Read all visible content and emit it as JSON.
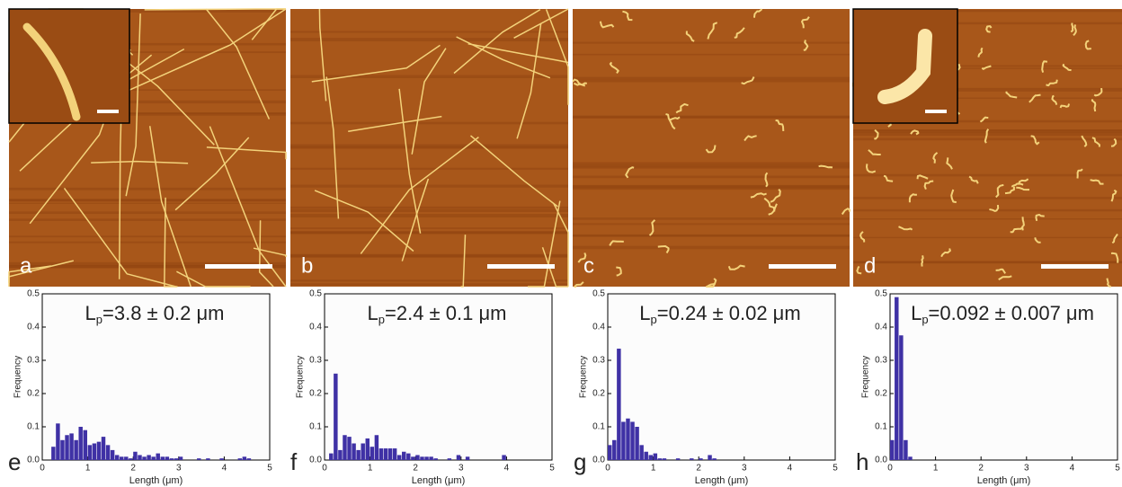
{
  "panels": [
    {
      "label": "a"
    },
    {
      "label": "b"
    },
    {
      "label": "c"
    },
    {
      "label": "d"
    }
  ],
  "chart_data": [
    {
      "type": "histogram",
      "panel_label": "e",
      "annotation": {
        "symbol": "L",
        "subscript": "p",
        "text": "=3.8 ± 0.2 μm"
      },
      "xlabel": "Length (μm)",
      "ylabel": "Frequency",
      "color": "#3f31a5",
      "bins": [
        0,
        0.1,
        0.2,
        0.3,
        0.4,
        0.5,
        0.6,
        0.7,
        0.8,
        0.9,
        1,
        1.1,
        1.2,
        1.3,
        1.4,
        1.5,
        1.6,
        1.7,
        1.8,
        1.9,
        2,
        2.1,
        2.2,
        2.3,
        2.4,
        2.5,
        2.6,
        2.7,
        2.8,
        2.9,
        3,
        3.1,
        3.2,
        3.3,
        3.4,
        3.5,
        3.6,
        3.7,
        3.8,
        3.9,
        4,
        4.1,
        4.2,
        4.3,
        4.4,
        4.5,
        4.6
      ],
      "values": [
        0,
        0,
        0.04,
        0.11,
        0.06,
        0.075,
        0.08,
        0.06,
        0.1,
        0.09,
        0.045,
        0.05,
        0.055,
        0.07,
        0.045,
        0.03,
        0.015,
        0.01,
        0.01,
        0.005,
        0.025,
        0.015,
        0.01,
        0.015,
        0.01,
        0.02,
        0.01,
        0.01,
        0.005,
        0.005,
        0.01,
        0,
        0,
        0,
        0.005,
        0,
        0.005,
        0,
        0,
        0.005,
        0,
        0,
        0,
        0.005,
        0.01,
        0.005
      ],
      "xlim": [
        0,
        5
      ],
      "xticks": [
        0,
        1,
        2,
        3,
        4,
        5
      ],
      "ylim": [
        0,
        0.5
      ],
      "yticks": [
        {
          "value": 0,
          "label": "0.0"
        },
        0.1,
        0.2,
        0.3,
        0.4,
        0.5
      ]
    },
    {
      "type": "histogram",
      "panel_label": "f",
      "annotation": {
        "symbol": "L",
        "subscript": "p",
        "text": "=2.4 ± 0.1 μm"
      },
      "xlabel": "Length (μm)",
      "ylabel": "Frequency",
      "color": "#3f31a5",
      "bins": [
        0,
        0.1,
        0.2,
        0.3,
        0.4,
        0.5,
        0.6,
        0.7,
        0.8,
        0.9,
        1,
        1.1,
        1.2,
        1.3,
        1.4,
        1.5,
        1.6,
        1.7,
        1.8,
        1.9,
        2,
        2.1,
        2.2,
        2.3,
        2.4,
        2.5,
        2.6,
        2.7,
        2.8,
        2.9,
        3,
        3.1,
        3.2,
        3.3,
        3.4,
        3.5,
        3.6,
        3.7,
        3.8,
        3.9,
        4,
        4.1,
        4.2,
        4.3,
        4.4,
        4.5,
        4.6
      ],
      "values": [
        0,
        0.02,
        0.26,
        0.03,
        0.075,
        0.07,
        0.05,
        0.03,
        0.05,
        0.065,
        0.04,
        0.075,
        0.035,
        0.035,
        0.035,
        0.035,
        0.015,
        0.025,
        0.02,
        0.01,
        0.015,
        0.01,
        0.01,
        0.01,
        0.005,
        0,
        0,
        0.005,
        0,
        0.015,
        0,
        0.01,
        0,
        0,
        0,
        0,
        0,
        0,
        0,
        0.015,
        0,
        0,
        0,
        0,
        0,
        0
      ],
      "xlim": [
        0,
        5
      ],
      "xticks": [
        0,
        1,
        2,
        3,
        4,
        5
      ],
      "ylim": [
        0,
        0.5
      ],
      "yticks": [
        {
          "value": 0,
          "label": "0.0"
        },
        0.1,
        0.2,
        0.3,
        0.4,
        0.5
      ]
    },
    {
      "type": "histogram",
      "panel_label": "g",
      "annotation": {
        "symbol": "L",
        "subscript": "p",
        "text": "=0.24 ± 0.02 μm"
      },
      "xlabel": "Length (μm)",
      "ylabel": "Frequency",
      "color": "#3f31a5",
      "bins": [
        0,
        0.1,
        0.2,
        0.3,
        0.4,
        0.5,
        0.6,
        0.7,
        0.8,
        0.9,
        1,
        1.1,
        1.2,
        1.3,
        1.4,
        1.5,
        1.6,
        1.7,
        1.8,
        1.9,
        2,
        2.1,
        2.2,
        2.3,
        2.4,
        2.5,
        2.6,
        2.7,
        2.8,
        2.9,
        3,
        3.1,
        3.2,
        3.3,
        3.4,
        3.5,
        3.6,
        3.7,
        3.8,
        3.9,
        4,
        4.1,
        4.2,
        4.3,
        4.4,
        4.5,
        4.6
      ],
      "values": [
        0.045,
        0.06,
        0.335,
        0.115,
        0.125,
        0.115,
        0.1,
        0.045,
        0.025,
        0.015,
        0.02,
        0.005,
        0.005,
        0,
        0,
        0.005,
        0,
        0,
        0.005,
        0,
        0.005,
        0,
        0.015,
        0.005,
        0,
        0,
        0,
        0,
        0,
        0,
        0,
        0,
        0,
        0,
        0,
        0,
        0,
        0,
        0,
        0,
        0,
        0,
        0,
        0,
        0,
        0
      ],
      "xlim": [
        0,
        5
      ],
      "xticks": [
        0,
        1,
        2,
        3,
        4,
        5
      ],
      "ylim": [
        0,
        0.5
      ],
      "yticks": [
        {
          "value": 0,
          "label": "0.0"
        },
        0.1,
        0.2,
        0.3,
        0.4,
        0.5
      ]
    },
    {
      "type": "histogram",
      "panel_label": "h",
      "annotation": {
        "symbol": "L",
        "subscript": "p",
        "text": "=0.092 ± 0.007 μm"
      },
      "xlabel": "Length (μm)",
      "ylabel": "Frequency",
      "color": "#3f31a5",
      "bins": [
        0,
        0.1,
        0.2,
        0.3,
        0.4,
        0.5,
        0.6,
        0.7,
        0.8,
        0.9,
        1,
        1.1,
        1.2,
        1.3,
        1.4,
        1.5,
        1.6,
        1.7,
        1.8,
        1.9,
        2,
        2.1,
        2.2,
        2.3,
        2.4,
        2.5,
        2.6,
        2.7,
        2.8,
        2.9,
        3,
        3.1,
        3.2,
        3.3,
        3.4,
        3.5,
        3.6,
        3.7,
        3.8,
        3.9,
        4,
        4.1,
        4.2,
        4.3,
        4.4,
        4.5,
        4.6
      ],
      "values": [
        0.06,
        0.49,
        0.375,
        0.06,
        0.01,
        0,
        0,
        0,
        0,
        0,
        0,
        0,
        0,
        0,
        0,
        0,
        0,
        0,
        0,
        0,
        0,
        0,
        0,
        0,
        0,
        0,
        0,
        0,
        0,
        0,
        0,
        0,
        0,
        0,
        0,
        0,
        0,
        0,
        0,
        0,
        0,
        0,
        0,
        0,
        0,
        0
      ],
      "xlim": [
        0,
        5
      ],
      "xticks": [
        0,
        1,
        2,
        3,
        4,
        5
      ],
      "ylim": [
        0,
        0.5
      ],
      "yticks": [
        {
          "value": 0,
          "label": "0.0"
        },
        0.1,
        0.2,
        0.3,
        0.4,
        0.5
      ]
    }
  ]
}
